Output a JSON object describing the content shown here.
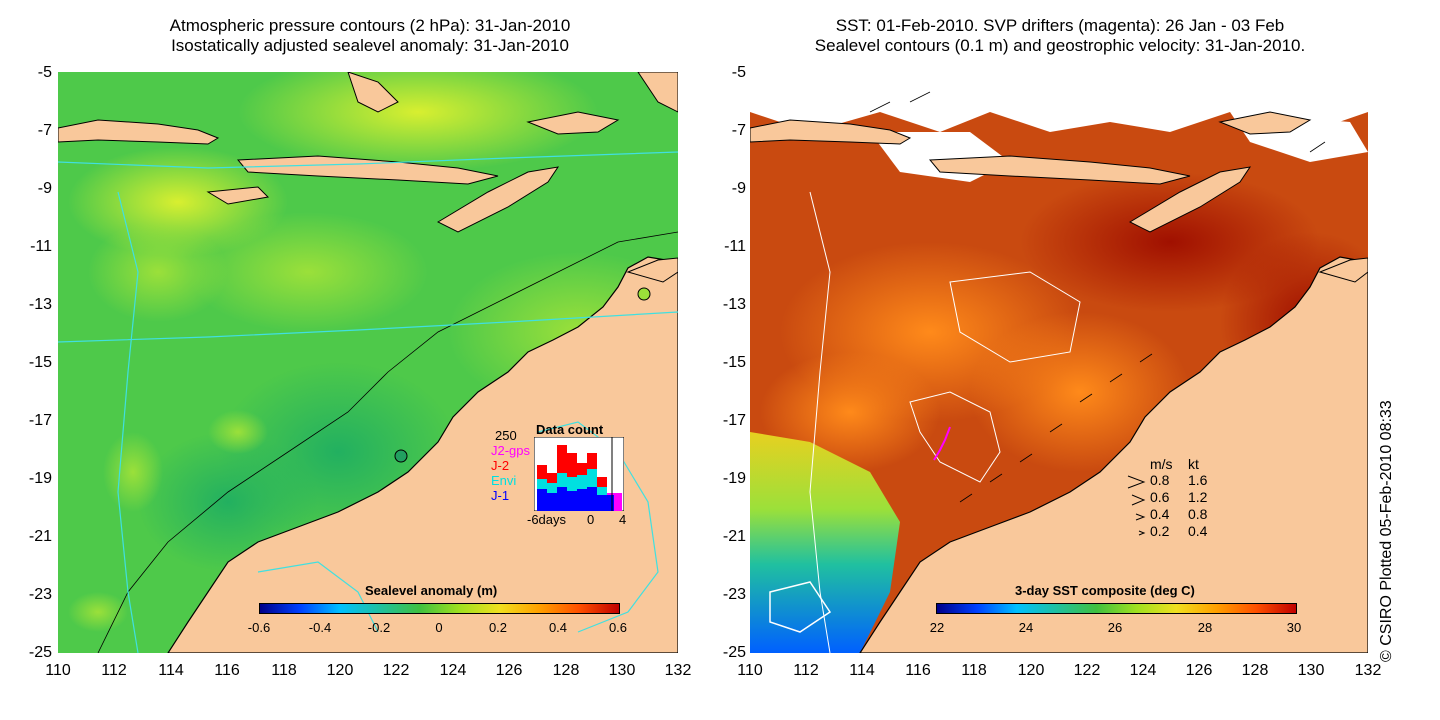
{
  "left_map": {
    "title_line1": "Atmospheric pressure contours (2 hPa): 31-Jan-2010",
    "title_line2": "Isostatically adjusted sealevel anomaly: 31-Jan-2010",
    "y_ticks": [
      "-5",
      "-7",
      "-9",
      "-11",
      "-13",
      "-15",
      "-17",
      "-19",
      "-21",
      "-23",
      "-25"
    ],
    "x_ticks": [
      "110",
      "112",
      "114",
      "116",
      "118",
      "120",
      "122",
      "124",
      "126",
      "128",
      "130",
      "132"
    ],
    "colorbar_title": "Sealevel anomaly (m)",
    "colorbar_labels": [
      "-0.6",
      "-0.4",
      "-0.2",
      "0",
      "0.2",
      "0.4",
      "0.6"
    ],
    "data_count": {
      "title": "Data count",
      "max_label": "250",
      "x_labels": [
        "-6days",
        "0",
        "4"
      ],
      "missions": [
        {
          "name": "J2-gps",
          "color": "#ff00ff"
        },
        {
          "name": "J-2",
          "color": "#ff0000"
        },
        {
          "name": "Envi",
          "color": "#00e0e0"
        },
        {
          "name": "J-1",
          "color": "#0000ff"
        }
      ]
    }
  },
  "right_map": {
    "title_line1": "SST: 01-Feb-2010. SVP drifters (magenta): 26 Jan - 03 Feb",
    "title_line2": "Sealevel contours (0.1 m) and geostrophic velocity: 31-Jan-2010.",
    "y_ticks": [
      "-5",
      "-7",
      "-9",
      "-11",
      "-13",
      "-15",
      "-17",
      "-19",
      "-21",
      "-23",
      "-25"
    ],
    "x_ticks": [
      "110",
      "112",
      "114",
      "116",
      "118",
      "120",
      "122",
      "124",
      "126",
      "128",
      "130",
      "132"
    ],
    "colorbar_title": "3-day SST composite (deg C)",
    "colorbar_labels": [
      "22",
      "24",
      "26",
      "28",
      "30"
    ],
    "velocity_legend": {
      "header_ms": "m/s",
      "header_kt": "kt",
      "rows": [
        {
          "ms": "0.8",
          "kt": "1.6"
        },
        {
          "ms": "0.6",
          "kt": "1.2"
        },
        {
          "ms": "0.4",
          "kt": "0.8"
        },
        {
          "ms": "0.2",
          "kt": "0.4"
        }
      ]
    }
  },
  "credit": "© CSIRO Plotted 05-Feb-2010 08:33",
  "colors": {
    "land": "#f9c89b",
    "sla_base": "#4ec94a",
    "sst_base": "#c94a10",
    "contour_cyan": "#40e0e0"
  }
}
